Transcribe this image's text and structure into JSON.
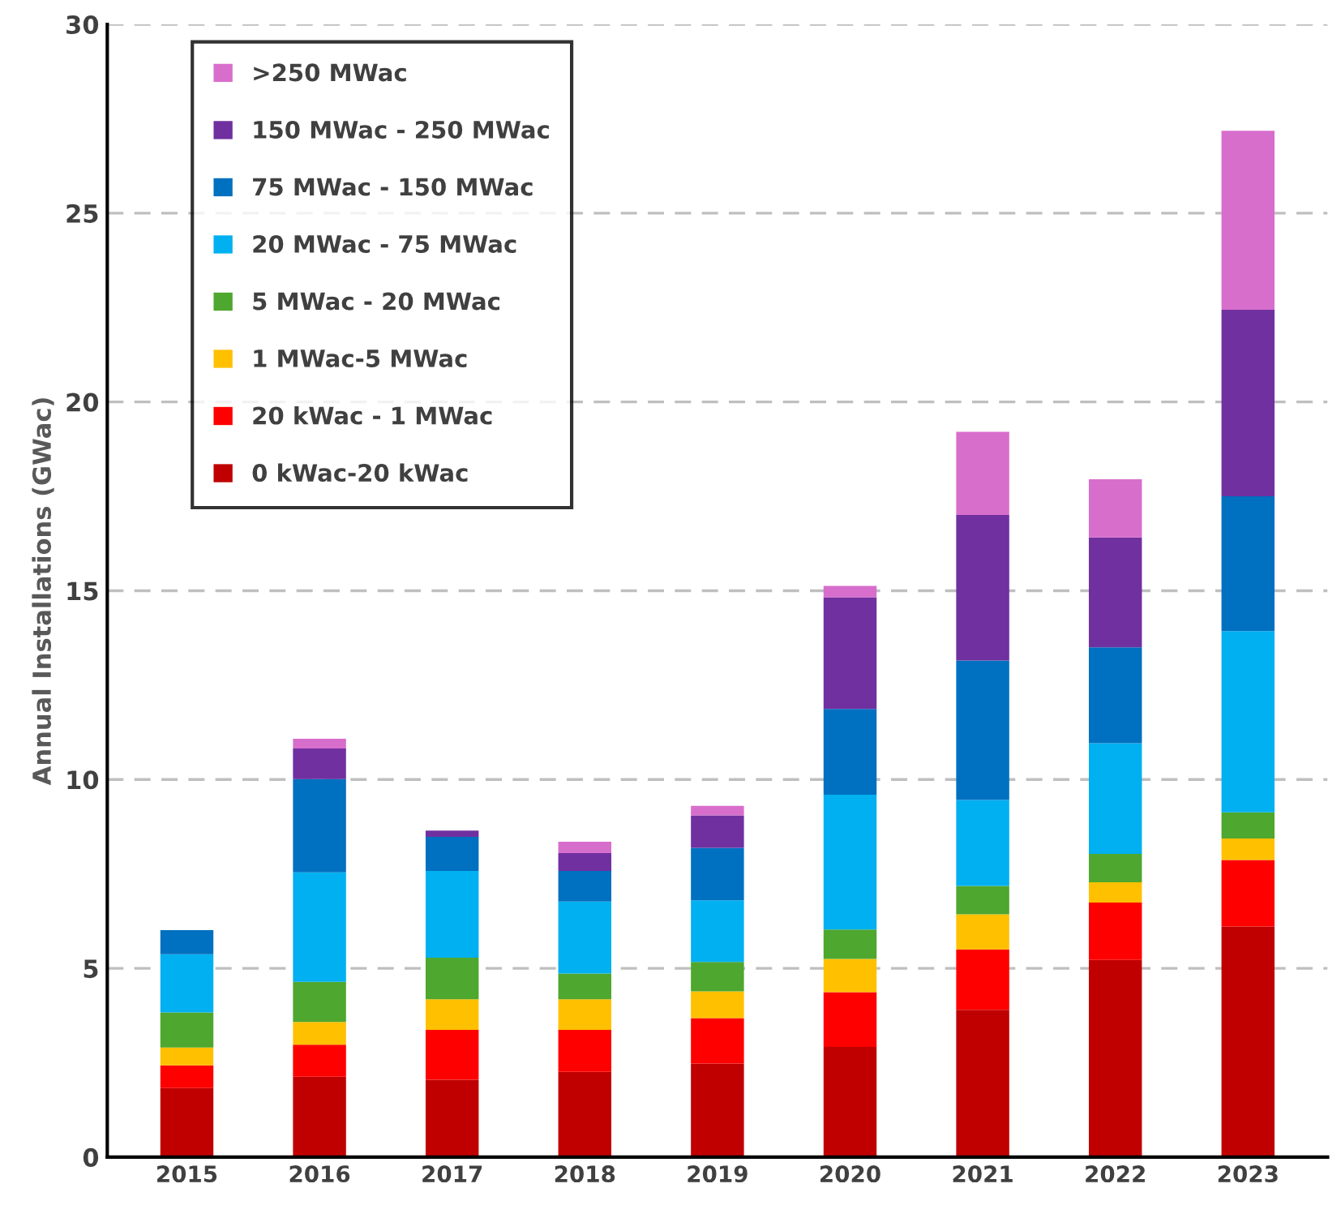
{
  "chart_data": {
    "type": "bar",
    "stacked": true,
    "ylabel": "Annual Installations (GWac)",
    "categories": [
      "2015",
      "2016",
      "2017",
      "2018",
      "2019",
      "2020",
      "2021",
      "2022",
      "2023"
    ],
    "series": [
      {
        "name": "0 kWac-20 kWac",
        "color": "#c00000",
        "values": [
          1.83,
          2.13,
          2.05,
          2.26,
          2.48,
          2.92,
          3.9,
          5.22,
          6.11
        ]
      },
      {
        "name": "20 kWac - 1 MWac",
        "color": "#ff0000",
        "values": [
          0.6,
          0.85,
          1.32,
          1.11,
          1.2,
          1.45,
          1.6,
          1.52,
          1.76
        ]
      },
      {
        "name": "1 MWac-5 MWac",
        "color": "#ffc000",
        "values": [
          0.47,
          0.6,
          0.81,
          0.81,
          0.71,
          0.88,
          0.93,
          0.54,
          0.57
        ]
      },
      {
        "name": "5 MWac - 20 MWac",
        "color": "#4ea72e",
        "values": [
          0.93,
          1.06,
          1.1,
          0.68,
          0.78,
          0.78,
          0.75,
          0.75,
          0.69
        ]
      },
      {
        "name": "20 MWac - 75 MWac",
        "color": "#00b0f0",
        "values": [
          1.54,
          2.9,
          2.3,
          1.91,
          1.63,
          3.57,
          2.28,
          2.93,
          4.8
        ]
      },
      {
        "name": "75 MWac - 150 MWac",
        "color": "#0070c0",
        "values": [
          0.64,
          2.47,
          0.9,
          0.81,
          1.39,
          2.27,
          3.69,
          2.54,
          3.57
        ]
      },
      {
        "name": "150 MWac - 250 MWac",
        "color": "#7030a0",
        "values": [
          0,
          0.81,
          0.17,
          0.47,
          0.86,
          2.96,
          3.86,
          2.91,
          4.94
        ]
      },
      {
        "name": ">250 MWac",
        "color": "#d86ecc",
        "values": [
          0,
          0.26,
          0,
          0.3,
          0.25,
          0.3,
          2.2,
          1.54,
          4.74
        ]
      }
    ],
    "ylim": [
      0,
      30
    ],
    "yticks": [
      0,
      5,
      10,
      15,
      20,
      25,
      30
    ],
    "grid": "y",
    "legend": "top left"
  }
}
